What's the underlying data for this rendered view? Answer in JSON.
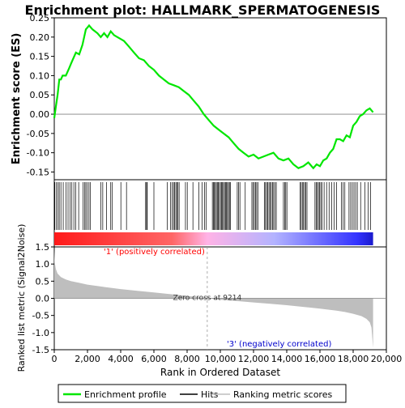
{
  "title": "Enrichment plot: HALLMARK_SPERMATOGENESIS",
  "colors": {
    "enrichment_line": "#00e600",
    "hit": "#000000",
    "metric_fill": "#bebebe",
    "zero_line": "#808080",
    "positive_label": "#ff0000",
    "negative_label": "#0000cc",
    "bar_red": "#ff1a1a",
    "bar_pink": "#ffb3e6",
    "bar_blue": "#3333ff"
  },
  "chart_data": [
    {
      "type": "line",
      "name": "enrichment",
      "ylabel": "Enrichment score (ES)",
      "xlim": [
        0,
        20000
      ],
      "ylim": [
        -0.17,
        0.25
      ],
      "yticks": [
        -0.15,
        -0.1,
        -0.05,
        0.0,
        0.05,
        0.1,
        0.15,
        0.2,
        0.25
      ],
      "ytick_labels": [
        "-0.15",
        "-0.10",
        "-0.05",
        "0.00",
        "0.05",
        "0.10",
        "0.15",
        "0.20",
        "0.25"
      ],
      "grid": false,
      "x": [
        0,
        100,
        200,
        300,
        400,
        500,
        700,
        900,
        1000,
        1100,
        1300,
        1500,
        1700,
        1800,
        1900,
        2000,
        2100,
        2300,
        2600,
        2800,
        3000,
        3200,
        3400,
        3600,
        3800,
        4000,
        4200,
        4500,
        4800,
        5100,
        5400,
        5700,
        6000,
        6300,
        6600,
        6900,
        7200,
        7500,
        7800,
        8100,
        8400,
        8700,
        9000,
        9300,
        9600,
        9900,
        10200,
        10500,
        10800,
        11100,
        11400,
        11700,
        12000,
        12300,
        12600,
        12900,
        13200,
        13500,
        13800,
        14100,
        14400,
        14700,
        15000,
        15300,
        15600,
        15800,
        16000,
        16200,
        16400,
        16600,
        16800,
        17000,
        17200,
        17400,
        17600,
        17800,
        18000,
        18200,
        18400,
        18600,
        18800,
        19000,
        19200
      ],
      "y": [
        -0.01,
        0.02,
        0.05,
        0.09,
        0.09,
        0.1,
        0.1,
        0.12,
        0.13,
        0.14,
        0.16,
        0.155,
        0.18,
        0.2,
        0.22,
        0.225,
        0.23,
        0.22,
        0.21,
        0.2,
        0.21,
        0.2,
        0.215,
        0.205,
        0.2,
        0.195,
        0.19,
        0.175,
        0.16,
        0.145,
        0.14,
        0.125,
        0.115,
        0.1,
        0.09,
        0.08,
        0.075,
        0.07,
        0.06,
        0.05,
        0.035,
        0.02,
        0.0,
        -0.015,
        -0.03,
        -0.04,
        -0.05,
        -0.06,
        -0.075,
        -0.09,
        -0.1,
        -0.11,
        -0.105,
        -0.115,
        -0.11,
        -0.105,
        -0.1,
        -0.115,
        -0.12,
        -0.115,
        -0.13,
        -0.14,
        -0.135,
        -0.125,
        -0.14,
        -0.13,
        -0.135,
        -0.12,
        -0.115,
        -0.1,
        -0.09,
        -0.065,
        -0.065,
        -0.07,
        -0.055,
        -0.06,
        -0.03,
        -0.02,
        -0.005,
        0.0,
        0.01,
        0.015,
        0.005
      ]
    },
    {
      "type": "barcode",
      "name": "hits",
      "hits": [
        30,
        120,
        220,
        300,
        400,
        540,
        700,
        830,
        960,
        1060,
        1180,
        1300,
        1470,
        1740,
        1820,
        1900,
        1990,
        2090,
        2180,
        2800,
        2920,
        3150,
        3400,
        3480,
        4010,
        4350,
        5500,
        5560,
        5600,
        6000,
        6800,
        7000,
        7100,
        7180,
        7250,
        7320,
        7380,
        7450,
        7520,
        7900,
        8010,
        8350,
        8700,
        8900,
        9050,
        9150,
        9520,
        9580,
        9640,
        9700,
        9760,
        9820,
        9880,
        9940,
        10010,
        10070,
        10130,
        10190,
        10250,
        10310,
        10370,
        10430,
        10490,
        10550,
        10610,
        11020,
        11100,
        11180,
        11500,
        11900,
        11970,
        12050,
        12120,
        12190,
        12260,
        12650,
        12720,
        12790,
        12860,
        12930,
        13000,
        13070,
        13140,
        13210,
        13300,
        13370,
        13800,
        13870,
        13940,
        14010,
        14800,
        14870,
        14940,
        15010,
        15080,
        15150,
        15220,
        15700,
        15770,
        15840,
        15910,
        15980,
        16050,
        16120,
        16250,
        16400,
        16550,
        16700,
        16850,
        17000,
        17300,
        17400,
        17500,
        17750,
        17850,
        17950,
        18050,
        18150,
        18250,
        18450,
        18700,
        18900,
        19050
      ],
      "gradient_stops": [
        0,
        7200,
        9300,
        13300,
        18300,
        19200
      ]
    },
    {
      "type": "area",
      "name": "ranked_metric",
      "ylabel": "Ranked list metric (Signal2Noise)",
      "xlabel": "Rank in Ordered Dataset",
      "xlim": [
        0,
        20000
      ],
      "ylim": [
        -1.5,
        1.5
      ],
      "xticks": [
        0,
        2000,
        4000,
        6000,
        8000,
        10000,
        12000,
        14000,
        16000,
        18000,
        20000
      ],
      "xtick_labels": [
        "0",
        "2,000",
        "4,000",
        "6,000",
        "8,000",
        "10,000",
        "12,000",
        "14,000",
        "16,000",
        "18,000",
        "20,000"
      ],
      "yticks": [
        -1.5,
        -1.0,
        -0.5,
        0.0,
        0.5,
        1.0,
        1.5
      ],
      "ytick_labels": [
        "-1.5",
        "-1.0",
        "-0.5",
        "0.0",
        "0.5",
        "1.0",
        "1.5"
      ],
      "x": [
        0,
        30,
        100,
        200,
        400,
        700,
        1000,
        1500,
        2000,
        3000,
        4000,
        5000,
        6000,
        7000,
        8000,
        9214,
        10000,
        11000,
        12000,
        13000,
        14000,
        15000,
        16000,
        17000,
        17500,
        18000,
        18500,
        18800,
        19000,
        19100,
        19200
      ],
      "y": [
        1.45,
        1.05,
        0.85,
        0.72,
        0.62,
        0.55,
        0.5,
        0.45,
        0.4,
        0.33,
        0.27,
        0.22,
        0.17,
        0.12,
        0.07,
        0.0,
        -0.04,
        -0.08,
        -0.12,
        -0.16,
        -0.2,
        -0.25,
        -0.3,
        -0.36,
        -0.4,
        -0.45,
        -0.52,
        -0.6,
        -0.7,
        -0.85,
        -1.45
      ],
      "zero_cross_label": "Zero cross at 9214",
      "zero_cross": 9214,
      "positive_label": "'1' (positively correlated)",
      "negative_label": "'3' (negatively correlated)"
    }
  ],
  "legend": {
    "items": [
      {
        "label": "Enrichment profile"
      },
      {
        "label": "Hits"
      },
      {
        "label": "Ranking metric scores"
      }
    ]
  }
}
